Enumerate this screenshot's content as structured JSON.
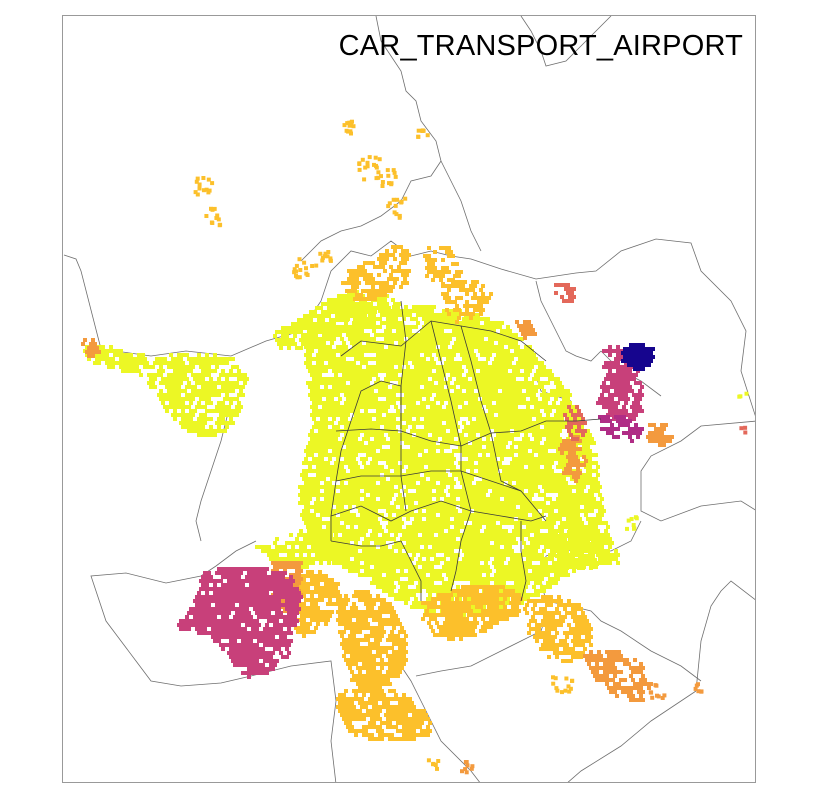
{
  "map": {
    "title": "CAR_TRANSPORT_AIRPORT",
    "palette": {
      "background": "#ffffff",
      "frame": "#999999",
      "boundary": "#6f6f6f",
      "district_boundary": "#3a3a3a",
      "level_1": "#ecf725",
      "level_2": "#fcc02b",
      "level_3": "#f39a3e",
      "level_4": "#e3685a",
      "level_5": "#c8407a",
      "level_6": "#b02d86",
      "level_7": "#16058e"
    },
    "color_scale": "plasma-reversed (yellow low, dark blue high)"
  }
}
